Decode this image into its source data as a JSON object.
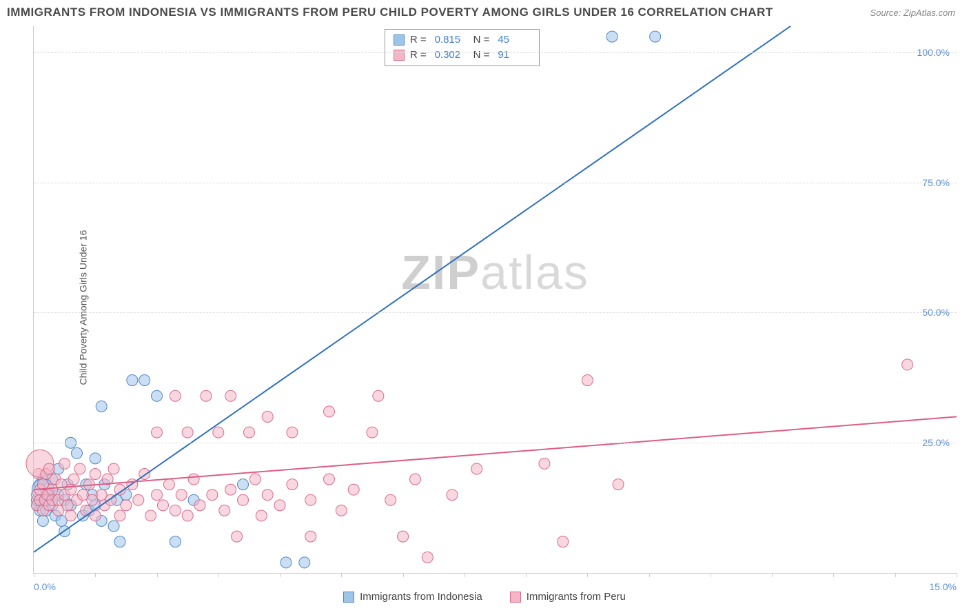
{
  "title": "IMMIGRANTS FROM INDONESIA VS IMMIGRANTS FROM PERU CHILD POVERTY AMONG GIRLS UNDER 16 CORRELATION CHART",
  "source_label": "Source: ZipAtlas.com",
  "watermark_a": "ZIP",
  "watermark_b": "atlas",
  "ylabel": "Child Poverty Among Girls Under 16",
  "chart": {
    "type": "scatter",
    "xlim": [
      0,
      15
    ],
    "ylim": [
      0,
      105
    ],
    "x_ticks": [
      0,
      1,
      2,
      3,
      4,
      5,
      6,
      7,
      8,
      9,
      10,
      11,
      12,
      13,
      14,
      15
    ],
    "x_tick_labels": {
      "0": "0.0%",
      "15": "15.0%"
    },
    "y_gridlines": [
      25,
      50,
      75,
      100
    ],
    "y_tick_labels": {
      "25": "25.0%",
      "50": "50.0%",
      "75": "75.0%",
      "100": "100.0%"
    },
    "grid_color": "#dddddd",
    "axis_color": "#cccccc",
    "tick_font_color": "#5b8fd6",
    "series": [
      {
        "name": "Immigrants from Indonesia",
        "fill": "#9fc4ea",
        "stroke": "#4f86c6",
        "line_color": "#2f6fc1",
        "marker_r": 8,
        "opacity": 0.55,
        "R": "0.815",
        "N": "45",
        "trend": {
          "x1": 0,
          "y1": 4,
          "x2": 12.3,
          "y2": 105
        },
        "points": [
          [
            0.05,
            13
          ],
          [
            0.05,
            14
          ],
          [
            0.1,
            12
          ],
          [
            0.1,
            17
          ],
          [
            0.15,
            10
          ],
          [
            0.15,
            18
          ],
          [
            0.15,
            16,
            16
          ],
          [
            0.2,
            14
          ],
          [
            0.2,
            12
          ],
          [
            0.25,
            15
          ],
          [
            0.3,
            13
          ],
          [
            0.3,
            18
          ],
          [
            0.35,
            11
          ],
          [
            0.4,
            15
          ],
          [
            0.4,
            20
          ],
          [
            0.45,
            10
          ],
          [
            0.5,
            14
          ],
          [
            0.5,
            8
          ],
          [
            0.55,
            17
          ],
          [
            0.6,
            13
          ],
          [
            0.6,
            25
          ],
          [
            0.7,
            23
          ],
          [
            0.8,
            11
          ],
          [
            0.85,
            17
          ],
          [
            0.9,
            12
          ],
          [
            0.95,
            15
          ],
          [
            1.0,
            13
          ],
          [
            1.0,
            22
          ],
          [
            1.1,
            10
          ],
          [
            1.1,
            32
          ],
          [
            1.15,
            17
          ],
          [
            1.3,
            9
          ],
          [
            1.35,
            14
          ],
          [
            1.4,
            6
          ],
          [
            1.5,
            15
          ],
          [
            1.6,
            37
          ],
          [
            1.8,
            37
          ],
          [
            2.0,
            34
          ],
          [
            2.3,
            6
          ],
          [
            2.6,
            14
          ],
          [
            3.4,
            17
          ],
          [
            4.1,
            2
          ],
          [
            4.4,
            2
          ],
          [
            9.4,
            103
          ],
          [
            10.1,
            103
          ]
        ]
      },
      {
        "name": "Immigrants from Peru",
        "fill": "#f4b6c6",
        "stroke": "#d86a8a",
        "line_color": "#dd5e85",
        "marker_r": 8,
        "opacity": 0.55,
        "R": "0.302",
        "N": "91",
        "trend": {
          "x1": 0,
          "y1": 16,
          "x2": 15,
          "y2": 30
        },
        "points": [
          [
            0.05,
            15
          ],
          [
            0.05,
            13
          ],
          [
            0.08,
            19
          ],
          [
            0.1,
            14
          ],
          [
            0.1,
            16
          ],
          [
            0.1,
            21,
            20
          ],
          [
            0.15,
            12
          ],
          [
            0.15,
            17
          ],
          [
            0.18,
            14
          ],
          [
            0.2,
            19
          ],
          [
            0.22,
            15
          ],
          [
            0.25,
            13
          ],
          [
            0.25,
            20
          ],
          [
            0.3,
            16
          ],
          [
            0.3,
            14
          ],
          [
            0.35,
            18
          ],
          [
            0.4,
            14
          ],
          [
            0.4,
            12
          ],
          [
            0.45,
            17
          ],
          [
            0.5,
            15
          ],
          [
            0.5,
            21
          ],
          [
            0.55,
            13
          ],
          [
            0.6,
            16
          ],
          [
            0.6,
            11
          ],
          [
            0.65,
            18
          ],
          [
            0.7,
            14
          ],
          [
            0.75,
            20
          ],
          [
            0.8,
            15
          ],
          [
            0.85,
            12
          ],
          [
            0.9,
            17
          ],
          [
            0.95,
            14
          ],
          [
            1.0,
            19
          ],
          [
            1.0,
            11
          ],
          [
            1.1,
            15
          ],
          [
            1.15,
            13
          ],
          [
            1.2,
            18
          ],
          [
            1.25,
            14
          ],
          [
            1.3,
            20
          ],
          [
            1.4,
            11
          ],
          [
            1.4,
            16
          ],
          [
            1.5,
            13
          ],
          [
            1.6,
            17
          ],
          [
            1.7,
            14
          ],
          [
            1.8,
            19
          ],
          [
            1.9,
            11
          ],
          [
            2.0,
            15
          ],
          [
            2.0,
            27
          ],
          [
            2.1,
            13
          ],
          [
            2.2,
            17
          ],
          [
            2.3,
            12
          ],
          [
            2.3,
            34
          ],
          [
            2.4,
            15
          ],
          [
            2.5,
            11
          ],
          [
            2.5,
            27
          ],
          [
            2.6,
            18
          ],
          [
            2.7,
            13
          ],
          [
            2.8,
            34
          ],
          [
            2.9,
            15
          ],
          [
            3.0,
            27
          ],
          [
            3.1,
            12
          ],
          [
            3.2,
            16
          ],
          [
            3.2,
            34
          ],
          [
            3.3,
            7
          ],
          [
            3.4,
            14
          ],
          [
            3.5,
            27
          ],
          [
            3.6,
            18
          ],
          [
            3.7,
            11
          ],
          [
            3.8,
            15
          ],
          [
            3.8,
            30
          ],
          [
            4.0,
            13
          ],
          [
            4.2,
            17
          ],
          [
            4.2,
            27
          ],
          [
            4.5,
            14
          ],
          [
            4.5,
            7
          ],
          [
            4.8,
            18
          ],
          [
            4.8,
            31
          ],
          [
            5.0,
            12
          ],
          [
            5.2,
            16
          ],
          [
            5.5,
            27
          ],
          [
            5.6,
            34
          ],
          [
            5.8,
            14
          ],
          [
            6.0,
            7
          ],
          [
            6.2,
            18
          ],
          [
            6.4,
            3
          ],
          [
            6.8,
            15
          ],
          [
            7.2,
            20
          ],
          [
            8.3,
            21
          ],
          [
            8.6,
            6
          ],
          [
            9.0,
            37
          ],
          [
            9.5,
            17
          ],
          [
            14.2,
            40
          ]
        ]
      }
    ]
  },
  "legend_bottom": [
    {
      "label": "Immigrants from Indonesia",
      "fill": "#9fc4ea",
      "stroke": "#4f86c6"
    },
    {
      "label": "Immigrants from Peru",
      "fill": "#f4b6c6",
      "stroke": "#d86a8a"
    }
  ]
}
